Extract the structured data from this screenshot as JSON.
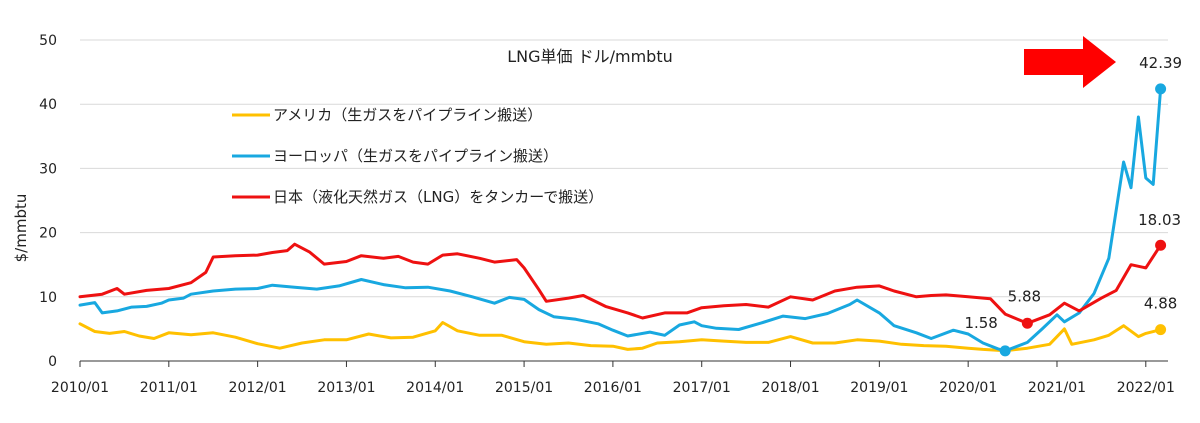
{
  "chart_data": {
    "type": "line",
    "title": "LNG単価 ドル/mmbtu",
    "ylabel": "$/mmbtu",
    "ylim": [
      0,
      50
    ],
    "yticks": [
      0,
      10,
      20,
      30,
      40,
      50
    ],
    "xlim": [
      "2010-01",
      "2022-04"
    ],
    "xticks": [
      "2010/01",
      "2011/01",
      "2012/01",
      "2013/01",
      "2014/01",
      "2015/01",
      "2016/01",
      "2017/01",
      "2018/01",
      "2019/01",
      "2020/01",
      "2021/01",
      "2022/01"
    ],
    "grid": "horizontal",
    "legend_position": "upper-left",
    "series": [
      {
        "name": "アメリカ（生ガスをパイプライン搬送）",
        "color": "#FFC000",
        "points": [
          [
            "2010-01",
            5.8
          ],
          [
            "2010-03",
            4.6
          ],
          [
            "2010-05",
            4.3
          ],
          [
            "2010-07",
            4.6
          ],
          [
            "2010-09",
            3.9
          ],
          [
            "2010-11",
            3.5
          ],
          [
            "2011-01",
            4.4
          ],
          [
            "2011-04",
            4.1
          ],
          [
            "2011-07",
            4.4
          ],
          [
            "2011-10",
            3.7
          ],
          [
            "2012-01",
            2.7
          ],
          [
            "2012-04",
            2.0
          ],
          [
            "2012-07",
            2.8
          ],
          [
            "2012-10",
            3.3
          ],
          [
            "2013-01",
            3.3
          ],
          [
            "2013-04",
            4.2
          ],
          [
            "2013-07",
            3.6
          ],
          [
            "2013-10",
            3.7
          ],
          [
            "2014-01",
            4.7
          ],
          [
            "2014-02",
            6.0
          ],
          [
            "2014-04",
            4.7
          ],
          [
            "2014-07",
            4.0
          ],
          [
            "2014-10",
            4.0
          ],
          [
            "2015-01",
            3.0
          ],
          [
            "2015-04",
            2.6
          ],
          [
            "2015-07",
            2.8
          ],
          [
            "2015-10",
            2.4
          ],
          [
            "2016-01",
            2.3
          ],
          [
            "2016-03",
            1.8
          ],
          [
            "2016-05",
            2.0
          ],
          [
            "2016-07",
            2.8
          ],
          [
            "2016-10",
            3.0
          ],
          [
            "2017-01",
            3.3
          ],
          [
            "2017-04",
            3.1
          ],
          [
            "2017-07",
            2.9
          ],
          [
            "2017-10",
            2.9
          ],
          [
            "2018-01",
            3.8
          ],
          [
            "2018-04",
            2.8
          ],
          [
            "2018-07",
            2.8
          ],
          [
            "2018-10",
            3.3
          ],
          [
            "2019-01",
            3.1
          ],
          [
            "2019-04",
            2.6
          ],
          [
            "2019-07",
            2.4
          ],
          [
            "2019-10",
            2.3
          ],
          [
            "2020-01",
            2.0
          ],
          [
            "2020-03",
            1.8
          ],
          [
            "2020-06",
            1.6
          ],
          [
            "2020-09",
            2.0
          ],
          [
            "2020-12",
            2.6
          ],
          [
            "2021-02",
            5.0
          ],
          [
            "2021-03",
            2.6
          ],
          [
            "2021-06",
            3.3
          ],
          [
            "2021-08",
            4.0
          ],
          [
            "2021-10",
            5.5
          ],
          [
            "2021-12",
            3.8
          ],
          [
            "2022-01",
            4.3
          ],
          [
            "2022-03",
            4.88
          ]
        ]
      },
      {
        "name": "ヨーロッパ（生ガスをパイプライン搬送）",
        "color": "#18A8E0",
        "points": [
          [
            "2010-01",
            8.7
          ],
          [
            "2010-03",
            9.1
          ],
          [
            "2010-04",
            7.5
          ],
          [
            "2010-06",
            7.8
          ],
          [
            "2010-08",
            8.4
          ],
          [
            "2010-10",
            8.5
          ],
          [
            "2010-12",
            9.0
          ],
          [
            "2011-01",
            9.5
          ],
          [
            "2011-03",
            9.8
          ],
          [
            "2011-04",
            10.4
          ],
          [
            "2011-07",
            10.9
          ],
          [
            "2011-10",
            11.2
          ],
          [
            "2012-01",
            11.3
          ],
          [
            "2012-03",
            11.8
          ],
          [
            "2012-06",
            11.5
          ],
          [
            "2012-09",
            11.2
          ],
          [
            "2012-12",
            11.7
          ],
          [
            "2013-03",
            12.7
          ],
          [
            "2013-06",
            11.9
          ],
          [
            "2013-09",
            11.4
          ],
          [
            "2013-12",
            11.5
          ],
          [
            "2014-03",
            10.9
          ],
          [
            "2014-06",
            10.0
          ],
          [
            "2014-09",
            9.0
          ],
          [
            "2014-11",
            9.9
          ],
          [
            "2015-01",
            9.6
          ],
          [
            "2015-03",
            8.0
          ],
          [
            "2015-05",
            6.9
          ],
          [
            "2015-08",
            6.5
          ],
          [
            "2015-11",
            5.8
          ],
          [
            "2016-01",
            4.8
          ],
          [
            "2016-03",
            3.9
          ],
          [
            "2016-06",
            4.5
          ],
          [
            "2016-08",
            4.0
          ],
          [
            "2016-10",
            5.6
          ],
          [
            "2016-12",
            6.1
          ],
          [
            "2017-01",
            5.5
          ],
          [
            "2017-03",
            5.1
          ],
          [
            "2017-06",
            4.9
          ],
          [
            "2017-09",
            5.9
          ],
          [
            "2017-12",
            7.0
          ],
          [
            "2018-03",
            6.6
          ],
          [
            "2018-06",
            7.4
          ],
          [
            "2018-09",
            8.8
          ],
          [
            "2018-10",
            9.5
          ],
          [
            "2019-01",
            7.5
          ],
          [
            "2019-03",
            5.5
          ],
          [
            "2019-06",
            4.4
          ],
          [
            "2019-08",
            3.5
          ],
          [
            "2019-11",
            4.8
          ],
          [
            "2020-01",
            4.2
          ],
          [
            "2020-03",
            2.8
          ],
          [
            "2020-05",
            1.9
          ],
          [
            "2020-06",
            1.58
          ],
          [
            "2020-09",
            2.9
          ],
          [
            "2020-11",
            5.0
          ],
          [
            "2021-01",
            7.2
          ],
          [
            "2021-02",
            6.1
          ],
          [
            "2021-04",
            7.5
          ],
          [
            "2021-06",
            10.5
          ],
          [
            "2021-08",
            16.0
          ],
          [
            "2021-10",
            31.0
          ],
          [
            "2021-11",
            27.0
          ],
          [
            "2021-12",
            38.0
          ],
          [
            "2022-01",
            28.5
          ],
          [
            "2022-02",
            27.5
          ],
          [
            "2022-03",
            42.39
          ]
        ]
      },
      {
        "name": "日本（液化天然ガス（LNG）をタンカーで搬送）",
        "color": "#EE1111",
        "points": [
          [
            "2010-01",
            10.0
          ],
          [
            "2010-04",
            10.4
          ],
          [
            "2010-06",
            11.3
          ],
          [
            "2010-07",
            10.4
          ],
          [
            "2010-10",
            11.0
          ],
          [
            "2011-01",
            11.3
          ],
          [
            "2011-04",
            12.2
          ],
          [
            "2011-06",
            13.8
          ],
          [
            "2011-07",
            16.2
          ],
          [
            "2011-10",
            16.4
          ],
          [
            "2012-01",
            16.5
          ],
          [
            "2012-03",
            16.9
          ],
          [
            "2012-05",
            17.2
          ],
          [
            "2012-06",
            18.2
          ],
          [
            "2012-08",
            17.0
          ],
          [
            "2012-10",
            15.1
          ],
          [
            "2013-01",
            15.5
          ],
          [
            "2013-03",
            16.4
          ],
          [
            "2013-06",
            16.0
          ],
          [
            "2013-08",
            16.3
          ],
          [
            "2013-10",
            15.4
          ],
          [
            "2013-12",
            15.1
          ],
          [
            "2014-02",
            16.5
          ],
          [
            "2014-04",
            16.7
          ],
          [
            "2014-07",
            16.0
          ],
          [
            "2014-09",
            15.4
          ],
          [
            "2014-12",
            15.8
          ],
          [
            "2015-01",
            14.5
          ],
          [
            "2015-03",
            11.1
          ],
          [
            "2015-04",
            9.3
          ],
          [
            "2015-07",
            9.8
          ],
          [
            "2015-09",
            10.2
          ],
          [
            "2015-12",
            8.5
          ],
          [
            "2016-03",
            7.5
          ],
          [
            "2016-05",
            6.7
          ],
          [
            "2016-08",
            7.5
          ],
          [
            "2016-11",
            7.5
          ],
          [
            "2017-01",
            8.3
          ],
          [
            "2017-04",
            8.6
          ],
          [
            "2017-07",
            8.8
          ],
          [
            "2017-10",
            8.4
          ],
          [
            "2018-01",
            10.0
          ],
          [
            "2018-04",
            9.5
          ],
          [
            "2018-07",
            10.9
          ],
          [
            "2018-10",
            11.5
          ],
          [
            "2019-01",
            11.7
          ],
          [
            "2019-03",
            10.9
          ],
          [
            "2019-06",
            10.0
          ],
          [
            "2019-08",
            10.2
          ],
          [
            "2019-10",
            10.3
          ],
          [
            "2020-01",
            10.0
          ],
          [
            "2020-04",
            9.7
          ],
          [
            "2020-06",
            7.3
          ],
          [
            "2020-09",
            5.88
          ],
          [
            "2020-12",
            7.2
          ],
          [
            "2021-02",
            9.0
          ],
          [
            "2021-04",
            7.8
          ],
          [
            "2021-07",
            9.8
          ],
          [
            "2021-09",
            11.0
          ],
          [
            "2021-11",
            15.0
          ],
          [
            "2022-01",
            14.5
          ],
          [
            "2022-03",
            18.03
          ]
        ]
      }
    ],
    "annotations": [
      {
        "series": 1,
        "date": "2022-03",
        "label": "42.39"
      },
      {
        "series": 2,
        "date": "2022-03",
        "label": "18.03"
      },
      {
        "series": 2,
        "date": "2020-09",
        "label": "5.88"
      },
      {
        "series": 1,
        "date": "2020-06",
        "label": "1.58"
      },
      {
        "series": 0,
        "date": "2022-03",
        "label": "4.88"
      }
    ]
  },
  "colors": {
    "arrow": "#FF0000",
    "grid": "#D9D9D9",
    "axis": "#333333"
  },
  "icons": {
    "highlight_arrow": "right-arrow-icon"
  }
}
